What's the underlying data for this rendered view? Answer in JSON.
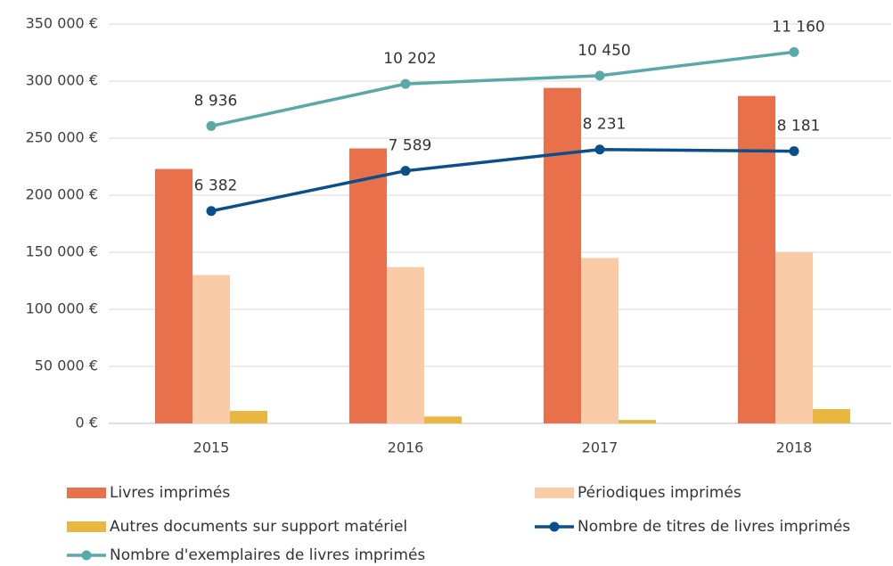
{
  "chart_data": {
    "type": "bar-line",
    "categories": [
      "2015",
      "2016",
      "2017",
      "2018"
    ],
    "series": [
      {
        "name": "Livres imprimés",
        "type": "bar",
        "color": "#e8704a",
        "values": [
          223000,
          241000,
          294000,
          287000
        ]
      },
      {
        "name": "Périodiques imprimés",
        "type": "bar",
        "color": "#f9cba7",
        "values": [
          130000,
          137000,
          145000,
          150000
        ]
      },
      {
        "name": "Autres documents sur support matériel",
        "type": "bar",
        "color": "#e8b840",
        "values": [
          11000,
          6000,
          3000,
          12500
        ]
      },
      {
        "name": "Nombre de titres de livres imprimés",
        "type": "line",
        "axis": "y2",
        "color": "#0b4f8a",
        "values": [
          6382,
          7589,
          8231,
          8181
        ],
        "value_labels": [
          "6 382",
          "7 589",
          "8 231",
          "8 181"
        ]
      },
      {
        "name": "Nombre d'exemplaires de livres imprimés",
        "type": "line",
        "axis": "y2",
        "color": "#5aa9a9",
        "values": [
          8936,
          10202,
          10450,
          11160
        ],
        "value_labels": [
          "8 936",
          "10 202",
          "10 450",
          "11 160"
        ]
      }
    ],
    "ylim": [
      0,
      350000
    ],
    "yticks": [
      {
        "value": 0,
        "label": "0 €"
      },
      {
        "value": 50000,
        "label": "50 000 €"
      },
      {
        "value": 100000,
        "label": "100 000 €"
      },
      {
        "value": 150000,
        "label": "150 000 €"
      },
      {
        "value": 200000,
        "label": "200 000 €"
      },
      {
        "value": 250000,
        "label": "250 000 €"
      },
      {
        "value": 300000,
        "label": "300 000 €"
      },
      {
        "value": 350000,
        "label": "350 000 €"
      }
    ],
    "y2lim": [
      0,
      12000
    ],
    "grid": true
  }
}
